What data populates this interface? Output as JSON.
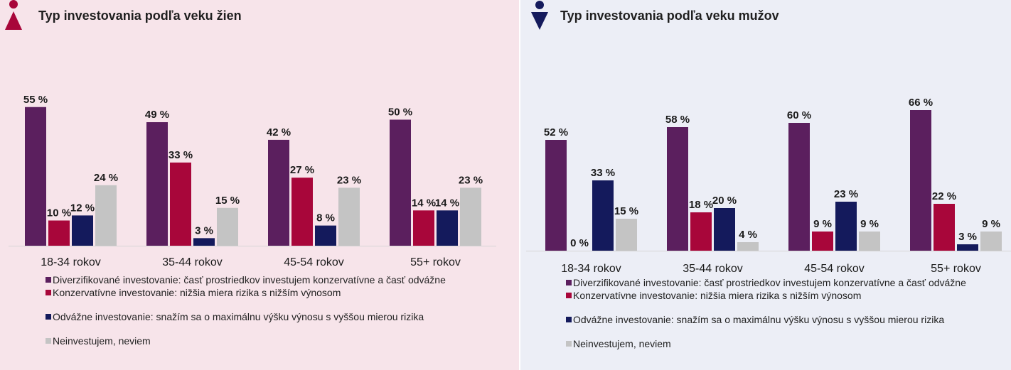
{
  "colors": {
    "diversified": "#5b1f5e",
    "conservative": "#a8063a",
    "bold": "#141a5c",
    "none": "#c4c4c4",
    "women_icon": "#a8063a",
    "men_icon": "#141a5c"
  },
  "legend": [
    {
      "key": "diversified",
      "label": "Diverzifikované investovanie: časť prostriedkov investujem konzervatívne a časť odvážne"
    },
    {
      "key": "conservative",
      "label": "Konzervatívne investovanie: nižšia miera rizika s nižším výnosom"
    },
    {
      "key": "bold",
      "label": "Odvážne investovanie: snažím sa o maximálnu výšku výnosu s vyššou mierou rizika"
    },
    {
      "key": "none",
      "label": "Neinvestujem, neviem"
    }
  ],
  "chart_data": [
    {
      "type": "bar",
      "title": "Typ investovania podľa veku žien",
      "icon": "woman-icon",
      "categories": [
        "18-34 rokov",
        "35-44 rokov",
        "45-54 rokov",
        "55+ rokov"
      ],
      "series": [
        {
          "key": "diversified",
          "values": [
            55,
            49,
            42,
            50
          ],
          "labels": [
            "55 %",
            "49 %",
            "42 %",
            "50 %"
          ]
        },
        {
          "key": "conservative",
          "values": [
            10,
            33,
            27,
            14
          ],
          "labels": [
            "10 %",
            "33 %",
            "27 %",
            "14 %"
          ]
        },
        {
          "key": "bold",
          "values": [
            12,
            3,
            8,
            14
          ],
          "labels": [
            "12 %",
            "3 %",
            "8 %",
            "14 %"
          ]
        },
        {
          "key": "none",
          "values": [
            24,
            15,
            23,
            23
          ],
          "labels": [
            "24 %",
            "15 %",
            "23 %",
            "23 %"
          ]
        }
      ],
      "ylim": [
        0,
        100
      ],
      "grid": false,
      "legend_position": "bottom"
    },
    {
      "type": "bar",
      "title": "Typ investovania podľa veku mužov",
      "icon": "man-icon",
      "categories": [
        "18-34 rokov",
        "35-44 rokov",
        "45-54 rokov",
        "55+ rokov"
      ],
      "series": [
        {
          "key": "diversified",
          "values": [
            52,
            58,
            60,
            66
          ],
          "labels": [
            "52 %",
            "58 %",
            "60 %",
            "66 %"
          ]
        },
        {
          "key": "conservative",
          "values": [
            0,
            18,
            9,
            22
          ],
          "labels": [
            "0 %",
            "18 %",
            "9 %",
            "22 %"
          ]
        },
        {
          "key": "bold",
          "values": [
            33,
            20,
            23,
            3
          ],
          "labels": [
            "33 %",
            "20 %",
            "23 %",
            "3 %"
          ]
        },
        {
          "key": "none",
          "values": [
            15,
            4,
            9,
            9
          ],
          "labels": [
            "15 %",
            "4 %",
            "9 %",
            "9 %"
          ]
        }
      ],
      "ylim": [
        0,
        100
      ],
      "grid": false,
      "legend_position": "bottom"
    }
  ]
}
